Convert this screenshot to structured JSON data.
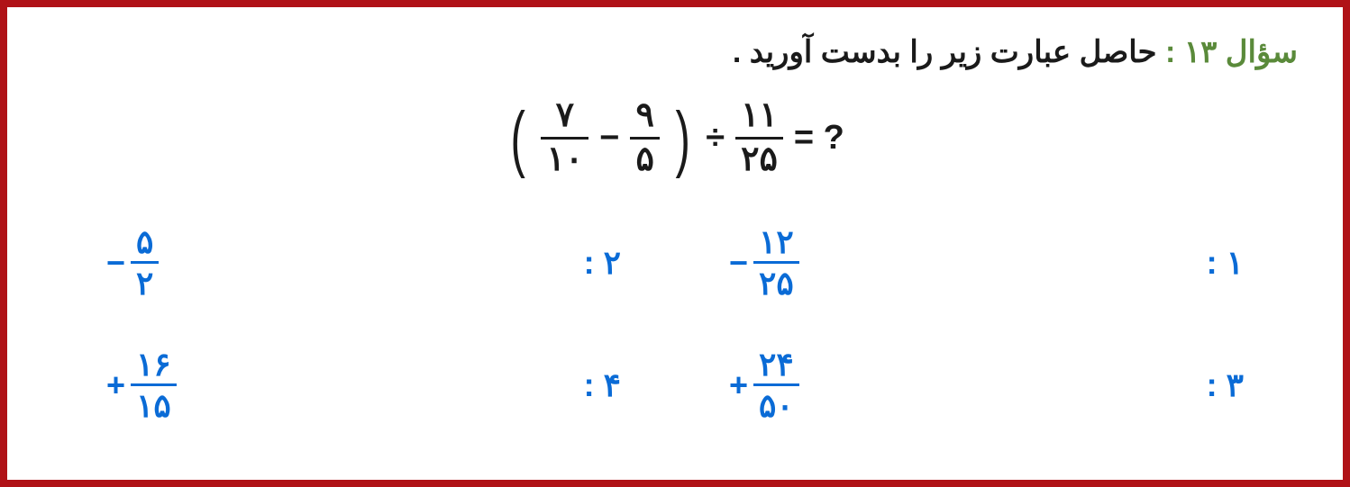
{
  "border_color": "#b01217",
  "accent_color": "#0a6bd6",
  "label_color": "#5a8a3a",
  "text_color": "#1a1a1a",
  "question": {
    "label": "سؤال ۱۳ :",
    "text": "حاصل عبارت زیر را بدست آورید ."
  },
  "equation": {
    "f1_num": "۷",
    "f1_den": "۱۰",
    "minus": "−",
    "f2_num": "۹",
    "f2_den": "۵",
    "divide": "÷",
    "f3_num": "۱۱",
    "f3_den": "۲۵",
    "tail": "= ?"
  },
  "options": {
    "o1": {
      "label": "۱ :",
      "sign": "−",
      "num": "۱۲",
      "den": "۲۵"
    },
    "o2": {
      "label": "۲ :",
      "sign": "−",
      "num": "۵",
      "den": "۲"
    },
    "o3": {
      "label": "۳ :",
      "sign": "+",
      "num": "۲۴",
      "den": "۵۰"
    },
    "o4": {
      "label": "۴ :",
      "sign": "+",
      "num": "۱۶",
      "den": "۱۵"
    }
  }
}
